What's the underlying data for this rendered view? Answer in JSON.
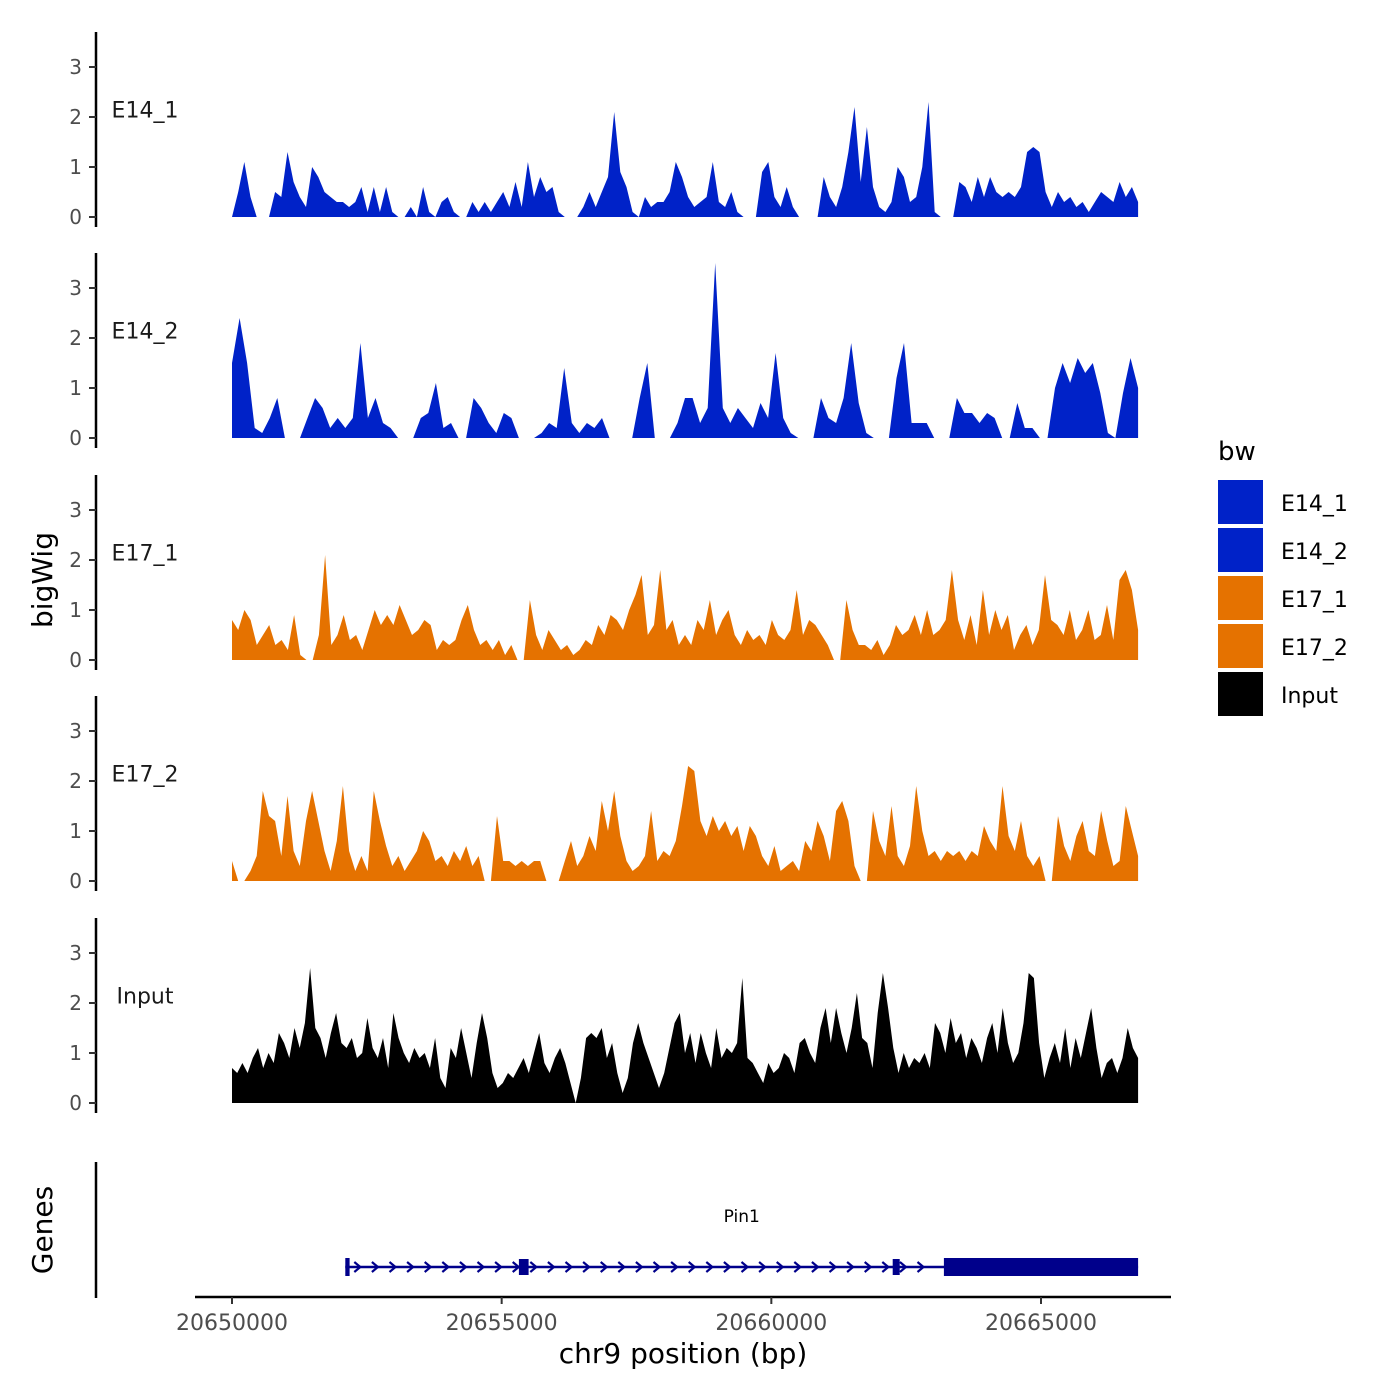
{
  "chart_data": {
    "type": "area",
    "title": "",
    "ylabel": "bigWig",
    "xlabel": "chr9 position (bp)",
    "chromosome": "chr9",
    "x_range": [
      20650000,
      20666800
    ],
    "xlim": [
      20649300,
      20667400
    ],
    "x_ticks": [
      20650000,
      20655000,
      20660000,
      20665000
    ],
    "x_tick_labels": [
      "20650000",
      "20655000",
      "20660000",
      "20665000"
    ],
    "ylim": [
      0,
      3.6
    ],
    "y_ticks": [
      0,
      1,
      2,
      3
    ],
    "y_tick_labels": [
      "0",
      "1",
      "2",
      "3"
    ],
    "legend": {
      "title": "bw",
      "position": "right",
      "entries": [
        {
          "label": "E14_1",
          "color": "#0022C8"
        },
        {
          "label": "E14_2",
          "color": "#0022C8"
        },
        {
          "label": "E17_1",
          "color": "#E57200"
        },
        {
          "label": "E17_2",
          "color": "#E57200"
        },
        {
          "label": "Input",
          "color": "#000000"
        }
      ]
    },
    "series": [
      {
        "name": "E14_1",
        "color": "#0022C8",
        "values": [
          0,
          0.5,
          1.1,
          0.4,
          0,
          0,
          0,
          0.5,
          0.4,
          1.3,
          0.7,
          0.4,
          0.2,
          1.0,
          0.8,
          0.5,
          0.4,
          0.3,
          0.3,
          0.2,
          0.3,
          0.6,
          0.1,
          0.6,
          0.1,
          0.6,
          0.1,
          0,
          0,
          0.2,
          0,
          0.6,
          0.1,
          0,
          0.3,
          0.4,
          0.1,
          0,
          0,
          0.3,
          0.1,
          0.3,
          0.1,
          0.3,
          0.5,
          0.2,
          0.7,
          0.2,
          1.1,
          0.4,
          0.8,
          0.5,
          0.6,
          0.1,
          0,
          0,
          0,
          0.2,
          0.5,
          0.2,
          0.5,
          0.8,
          2.1,
          0.9,
          0.6,
          0.1,
          0,
          0.4,
          0.2,
          0.3,
          0.3,
          0.5,
          1.1,
          0.8,
          0.4,
          0.2,
          0.3,
          0.4,
          1.1,
          0.3,
          0.2,
          0.5,
          0.1,
          0,
          0,
          0,
          0.9,
          1.1,
          0.4,
          0.2,
          0.6,
          0.2,
          0,
          0,
          0,
          0,
          0.8,
          0.4,
          0.2,
          0.6,
          1.3,
          2.2,
          0.7,
          1.8,
          0.6,
          0.2,
          0.1,
          0.3,
          1.0,
          0.8,
          0.3,
          0.4,
          1.0,
          2.3,
          0.1,
          0,
          0,
          0,
          0.7,
          0.6,
          0.3,
          0.8,
          0.4,
          0.8,
          0.5,
          0.4,
          0.5,
          0.4,
          0.6,
          1.3,
          1.4,
          1.3,
          0.5,
          0.2,
          0.5,
          0.3,
          0.4,
          0.2,
          0.3,
          0.1,
          0.3,
          0.5,
          0.4,
          0.3,
          0.7,
          0.4,
          0.6,
          0.3
        ]
      },
      {
        "name": "E14_2",
        "color": "#0022C8",
        "values": [
          1.5,
          2.4,
          1.5,
          0.2,
          0.1,
          0.4,
          0.8,
          0,
          0,
          0,
          0.4,
          0.8,
          0.6,
          0.2,
          0.4,
          0.2,
          0.4,
          1.9,
          0.4,
          0.8,
          0.3,
          0.2,
          0,
          0,
          0,
          0.4,
          0.5,
          1.1,
          0.2,
          0.3,
          0,
          0,
          0.8,
          0.6,
          0.3,
          0.1,
          0.5,
          0.4,
          0,
          0,
          0,
          0.1,
          0.3,
          0.2,
          1.4,
          0.3,
          0.1,
          0.3,
          0.2,
          0.4,
          0,
          0,
          0,
          0,
          0.8,
          1.5,
          0,
          0,
          0,
          0.3,
          0.8,
          0.8,
          0.3,
          0.6,
          3.5,
          0.6,
          0.3,
          0.6,
          0.4,
          0.2,
          0.7,
          0.4,
          1.7,
          0.4,
          0.1,
          0,
          0,
          0,
          0.8,
          0.4,
          0.3,
          0.8,
          1.9,
          0.7,
          0.1,
          0,
          0,
          0,
          1.2,
          1.9,
          0.3,
          0.3,
          0.3,
          0,
          0,
          0,
          0.8,
          0.5,
          0.5,
          0.3,
          0.5,
          0.4,
          0,
          0,
          0.7,
          0.2,
          0.2,
          0,
          0,
          1.0,
          1.5,
          1.1,
          1.6,
          1.3,
          1.5,
          0.9,
          0.1,
          0,
          0.9,
          1.6,
          1.0
        ]
      },
      {
        "name": "E17_1",
        "color": "#E57200",
        "values": [
          0.8,
          0.6,
          1.0,
          0.8,
          0.3,
          0.5,
          0.7,
          0.3,
          0.4,
          0.2,
          0.9,
          0.1,
          0,
          0,
          0.5,
          2.1,
          0.3,
          0.5,
          0.9,
          0.4,
          0.5,
          0.2,
          0.6,
          1.0,
          0.7,
          0.9,
          0.7,
          1.1,
          0.8,
          0.5,
          0.6,
          0.8,
          0.7,
          0.2,
          0.4,
          0.3,
          0.4,
          0.8,
          1.1,
          0.6,
          0.3,
          0.4,
          0.2,
          0.4,
          0.1,
          0.3,
          0,
          0,
          1.2,
          0.5,
          0.2,
          0.6,
          0.4,
          0.2,
          0.3,
          0.1,
          0.2,
          0.4,
          0.3,
          0.7,
          0.5,
          0.9,
          0.8,
          0.6,
          1.0,
          1.3,
          1.7,
          0.5,
          0.7,
          1.8,
          0.6,
          0.8,
          0.3,
          0.5,
          0.3,
          0.8,
          0.6,
          1.2,
          0.5,
          0.8,
          1.0,
          0.5,
          0.3,
          0.6,
          0.4,
          0.5,
          0.3,
          0.8,
          0.5,
          0.4,
          0.6,
          1.4,
          0.5,
          0.8,
          0.7,
          0.5,
          0.3,
          0,
          0,
          1.2,
          0.6,
          0.3,
          0.3,
          0.2,
          0.4,
          0.1,
          0.3,
          0.7,
          0.5,
          0.6,
          0.9,
          0.5,
          1.0,
          0.5,
          0.6,
          0.8,
          1.8,
          0.8,
          0.4,
          0.9,
          0.3,
          1.4,
          0.5,
          1.0,
          0.6,
          0.9,
          0.2,
          0.5,
          0.7,
          0.3,
          0.6,
          1.7,
          0.8,
          0.7,
          0.5,
          1.0,
          0.4,
          0.6,
          1.0,
          0.4,
          0.5,
          1.1,
          0.4,
          1.6,
          1.8,
          1.4,
          0.6
        ]
      },
      {
        "name": "E17_2",
        "color": "#E57200",
        "values": [
          0.4,
          0,
          0,
          0.2,
          0.5,
          1.8,
          1.3,
          1.2,
          0.5,
          1.7,
          0.6,
          0.3,
          1.2,
          1.8,
          1.2,
          0.6,
          0.2,
          0.8,
          1.9,
          0.6,
          0.2,
          0.5,
          0.2,
          1.8,
          1.2,
          0.7,
          0.3,
          0.5,
          0.2,
          0.4,
          0.6,
          1.0,
          0.8,
          0.4,
          0.5,
          0.3,
          0.6,
          0.4,
          0.7,
          0.3,
          0.5,
          0,
          0,
          1.3,
          0.4,
          0.4,
          0.3,
          0.4,
          0.3,
          0.4,
          0.4,
          0,
          0,
          0,
          0.4,
          0.8,
          0.3,
          0.5,
          0.9,
          0.6,
          1.6,
          1.0,
          1.8,
          0.9,
          0.4,
          0.2,
          0.3,
          0.5,
          1.4,
          0.4,
          0.6,
          0.5,
          0.8,
          1.5,
          2.3,
          2.2,
          1.2,
          0.9,
          1.3,
          1.0,
          1.2,
          0.9,
          1.1,
          0.6,
          1.1,
          0.9,
          0.5,
          0.3,
          0.7,
          0.2,
          0.3,
          0.4,
          0.2,
          0.8,
          0.6,
          1.2,
          0.9,
          0.4,
          1.4,
          1.6,
          1.2,
          0.3,
          0,
          0,
          1.4,
          0.8,
          0.5,
          1.5,
          0.5,
          0.3,
          0.7,
          1.9,
          1.0,
          0.5,
          0.6,
          0.4,
          0.6,
          0.5,
          0.6,
          0.4,
          0.6,
          0.5,
          1.1,
          0.8,
          0.6,
          1.9,
          0.9,
          0.6,
          1.2,
          0.5,
          0.3,
          0.5,
          0,
          0,
          1.3,
          0.7,
          0.4,
          0.9,
          1.2,
          0.6,
          0.5,
          1.4,
          0.8,
          0.3,
          0.4,
          1.5,
          1.0,
          0.5
        ]
      },
      {
        "name": "Input",
        "color": "#000000",
        "values": [
          0.7,
          0.6,
          0.8,
          0.6,
          0.9,
          1.1,
          0.7,
          1.0,
          0.8,
          1.4,
          1.2,
          0.9,
          1.5,
          1.1,
          1.6,
          2.7,
          1.5,
          1.3,
          0.9,
          1.4,
          1.8,
          1.2,
          1.1,
          1.3,
          0.9,
          1.0,
          1.7,
          1.1,
          0.9,
          1.3,
          0.7,
          1.8,
          1.3,
          1.0,
          0.8,
          1.1,
          0.9,
          1.0,
          0.7,
          1.3,
          0.5,
          0.3,
          1.1,
          0.9,
          1.5,
          1.0,
          0.5,
          1.2,
          1.8,
          1.3,
          0.6,
          0.3,
          0.4,
          0.6,
          0.5,
          0.7,
          0.9,
          0.6,
          1.0,
          1.4,
          0.8,
          0.6,
          0.9,
          1.1,
          0.8,
          0.4,
          0,
          0.5,
          1.3,
          1.4,
          1.3,
          1.5,
          0.9,
          1.2,
          0.6,
          0.2,
          0.5,
          1.2,
          1.6,
          1.2,
          0.9,
          0.6,
          0.3,
          0.6,
          1.1,
          1.6,
          1.8,
          1.0,
          1.4,
          0.8,
          1.4,
          1.0,
          0.7,
          1.5,
          0.9,
          1.1,
          1.0,
          1.2,
          2.5,
          0.9,
          0.8,
          0.6,
          0.4,
          0.8,
          0.6,
          0.7,
          1.0,
          0.9,
          0.6,
          1.2,
          1.3,
          1.0,
          0.8,
          1.5,
          1.9,
          1.2,
          1.9,
          1.4,
          1.0,
          1.5,
          2.2,
          1.3,
          1.2,
          0.7,
          1.8,
          2.6,
          1.9,
          1.1,
          0.6,
          1.0,
          0.7,
          0.9,
          0.8,
          1.0,
          0.7,
          1.6,
          1.4,
          1.0,
          1.7,
          1.2,
          1.4,
          0.9,
          1.3,
          1.1,
          0.8,
          1.3,
          1.6,
          1.0,
          1.9,
          1.2,
          0.8,
          1.0,
          1.6,
          2.6,
          2.5,
          1.2,
          0.5,
          0.9,
          1.2,
          0.8,
          1.5,
          0.7,
          1.3,
          0.9,
          1.4,
          1.9,
          1.1,
          0.5,
          0.8,
          0.9,
          0.6,
          0.9,
          1.5,
          1.1,
          0.9
        ]
      }
    ],
    "gene_track": {
      "label": "Genes",
      "gene_name": "Pin1",
      "strand": "+",
      "start": 20652100,
      "end": 20666800,
      "exons": [
        {
          "start": 20652100,
          "end": 20652180,
          "type": "utr"
        },
        {
          "start": 20655320,
          "end": 20655500,
          "type": "cds"
        },
        {
          "start": 20662250,
          "end": 20662380,
          "type": "cds"
        },
        {
          "start": 20663200,
          "end": 20666800,
          "type": "utr3"
        }
      ]
    }
  }
}
